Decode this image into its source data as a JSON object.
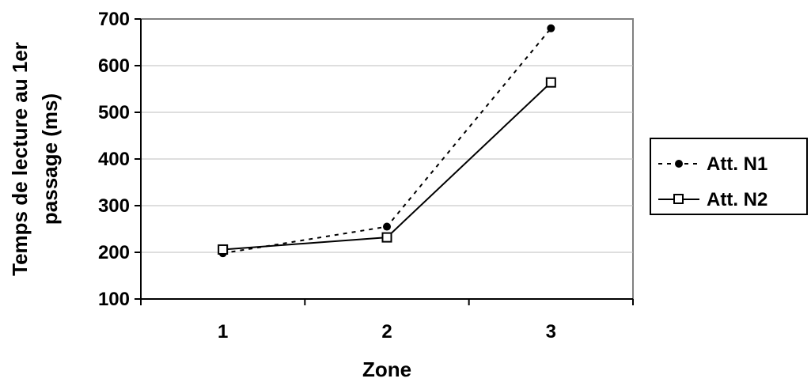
{
  "chart_data": {
    "type": "line",
    "categories": [
      "1",
      "2",
      "3"
    ],
    "series": [
      {
        "name": "Att. N1",
        "values": [
          198,
          255,
          680
        ],
        "line_style": "dashed",
        "marker": "filled-circle",
        "color": "#000000"
      },
      {
        "name": "Att. N2",
        "values": [
          206,
          232,
          564
        ],
        "line_style": "solid",
        "marker": "open-square",
        "color": "#000000"
      }
    ],
    "xlabel": "Zone",
    "ylabel_lines": [
      "Temps de lecture au 1er",
      "passage (ms)"
    ],
    "ylim": [
      100,
      700
    ],
    "yticks": [
      "100",
      "200",
      "300",
      "400",
      "500",
      "600",
      "700"
    ],
    "grid": true,
    "legend_position": "right"
  }
}
